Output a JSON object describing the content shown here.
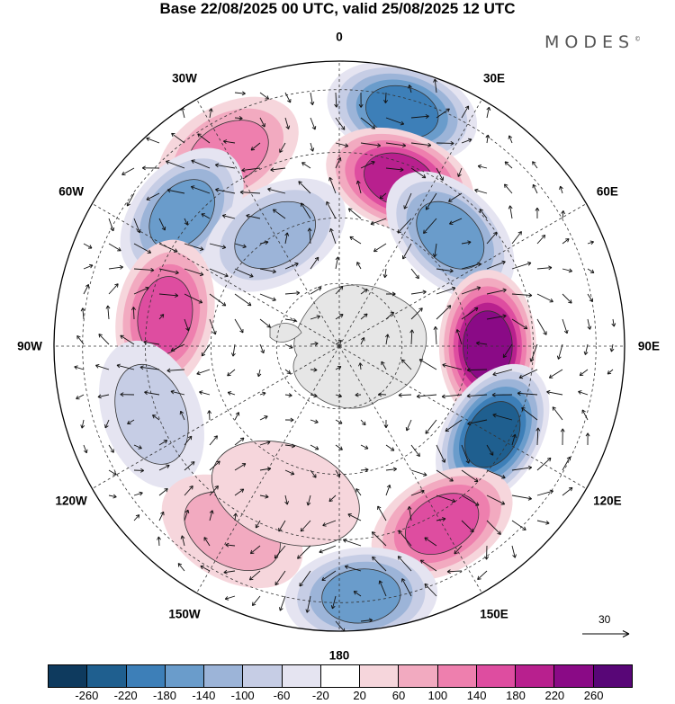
{
  "header": {
    "title": "Base 22/08/2025 00 UTC, valid 25/08/2025 12 UTC",
    "brand": "MODES",
    "brand_mark": "©"
  },
  "map": {
    "projection": "south-polar-stereographic",
    "lon_labels": [
      {
        "text": "0",
        "lon": 0
      },
      {
        "text": "30E",
        "lon": 30
      },
      {
        "text": "60E",
        "lon": 60
      },
      {
        "text": "90E",
        "lon": 90
      },
      {
        "text": "120E",
        "lon": 120
      },
      {
        "text": "150E",
        "lon": 150
      },
      {
        "text": "180",
        "lon": 180
      },
      {
        "text": "150W",
        "lon": -150
      },
      {
        "text": "120W",
        "lon": -120
      },
      {
        "text": "90W",
        "lon": -90
      },
      {
        "text": "60W",
        "lon": -60
      },
      {
        "text": "30W",
        "lon": -30
      }
    ],
    "reference_vector": "30",
    "anomaly_centers": [
      {
        "lon": 15,
        "lat_frac": 0.85,
        "value": -180
      },
      {
        "lon": 20,
        "lat_frac": 0.62,
        "value": 180
      },
      {
        "lon": 45,
        "lat_frac": 0.55,
        "value": -160
      },
      {
        "lon": 90,
        "lat_frac": 0.52,
        "value": 220
      },
      {
        "lon": 120,
        "lat_frac": 0.62,
        "value": -220
      },
      {
        "lon": 150,
        "lat_frac": 0.72,
        "value": 140
      },
      {
        "lon": 175,
        "lat_frac": 0.88,
        "value": -140
      },
      {
        "lon": -30,
        "lat_frac": 0.78,
        "value": 100
      },
      {
        "lon": -50,
        "lat_frac": 0.72,
        "value": -160
      },
      {
        "lon": -30,
        "lat_frac": 0.45,
        "value": -120
      },
      {
        "lon": -80,
        "lat_frac": 0.62,
        "value": 140
      },
      {
        "lon": -110,
        "lat_frac": 0.7,
        "value": -60
      },
      {
        "lon": -150,
        "lat_frac": 0.75,
        "value": 60
      },
      {
        "lon": -160,
        "lat_frac": 0.55,
        "value": 40
      }
    ]
  },
  "colorbar": {
    "colors": [
      "#0e3a5e",
      "#1f5f8f",
      "#3d7fb8",
      "#6a9ccb",
      "#9cb4d8",
      "#c6cde5",
      "#e5e4f1",
      "#ffffff",
      "#f6d6dc",
      "#f2aac0",
      "#ee7fae",
      "#de4da0",
      "#b8208e",
      "#8a0a86",
      "#580677"
    ],
    "tick_labels": [
      "-260",
      "-220",
      "-180",
      "-140",
      "-100",
      "-60",
      "-20",
      "20",
      "60",
      "100",
      "140",
      "180",
      "220",
      "260"
    ]
  }
}
